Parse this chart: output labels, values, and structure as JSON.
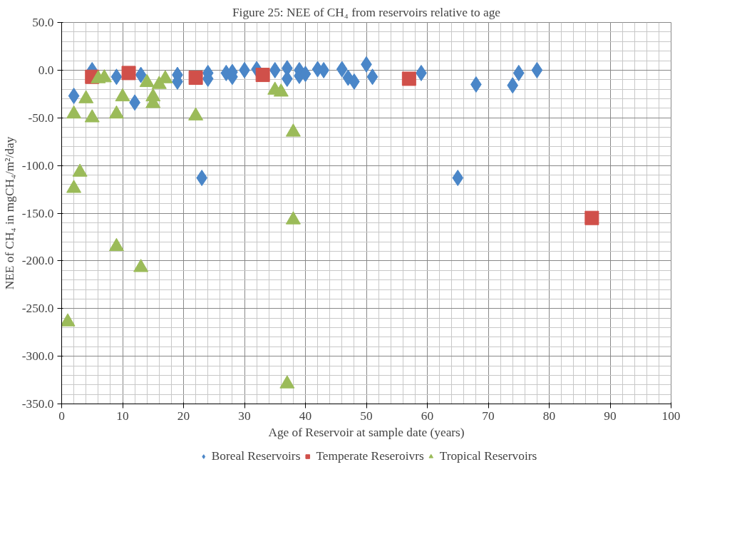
{
  "chart_data": {
    "type": "scatter",
    "title": "Figure 25: NEE of CH₄ from reservoirs relative to age",
    "xlabel": "Age of Reservoir at sample date (years)",
    "ylabel": "NEE of CH₄ in mgCH₄/m²/day",
    "xlim": [
      0,
      100
    ],
    "xticks": [
      0,
      10,
      20,
      30,
      40,
      50,
      60,
      70,
      80,
      90,
      100
    ],
    "ylim": [
      -350,
      50
    ],
    "yticks": [
      {
        "value": -350,
        "label": "-350.0"
      },
      {
        "value": -300,
        "label": "-300.0"
      },
      {
        "value": -250,
        "label": "-250.0"
      },
      {
        "value": -200,
        "label": "-200.0"
      },
      {
        "value": -150,
        "label": "-150.0"
      },
      {
        "value": -100,
        "label": "-100.0"
      },
      {
        "value": -50,
        "label": "-50.0"
      },
      {
        "value": 0,
        "label": "0.0"
      },
      {
        "value": 50,
        "label": "50.0"
      }
    ],
    "grid": true,
    "legend": "bottom",
    "series": [
      {
        "name": "Boreal Reservoirs",
        "color": "#4a86c8",
        "marker": "diamond",
        "x": [
          2,
          5,
          9,
          12,
          13,
          19,
          19,
          23,
          24,
          24,
          27,
          28,
          28,
          30,
          32,
          35,
          37,
          37,
          39,
          39,
          40,
          42,
          43,
          46,
          47,
          48,
          50,
          51,
          59,
          65,
          68,
          74,
          75,
          78
        ],
        "values": [
          -27,
          0,
          -7,
          -34,
          -5,
          -5,
          -12,
          -113,
          -3,
          -9,
          -3,
          -7,
          -2,
          0,
          1,
          0,
          2,
          -9,
          0,
          -6,
          -4,
          1,
          0,
          1,
          -8,
          -12,
          6,
          -7,
          -3,
          -113,
          -15,
          -16,
          -3,
          0
        ]
      },
      {
        "name": "Temperate Reseroivrs",
        "color": "#d0504a",
        "marker": "square",
        "x": [
          5,
          11,
          22,
          33,
          57,
          87
        ],
        "values": [
          -7,
          -3,
          -8,
          -5,
          -9,
          -155
        ]
      },
      {
        "name": "Tropical Reservoirs",
        "color": "#9bbb59",
        "marker": "triangle",
        "x": [
          1,
          2,
          2,
          3,
          4,
          5,
          6,
          7,
          9,
          9,
          10,
          13,
          14,
          15,
          15,
          16,
          17,
          22,
          35,
          36,
          37,
          38,
          38
        ],
        "values": [
          -264,
          -124,
          -46,
          -107,
          -30,
          -50,
          -9,
          -8,
          -46,
          -185,
          -28,
          -207,
          -13,
          -28,
          -35,
          -15,
          -9,
          -48,
          -21,
          -23,
          -329,
          -65,
          -157
        ]
      }
    ]
  }
}
